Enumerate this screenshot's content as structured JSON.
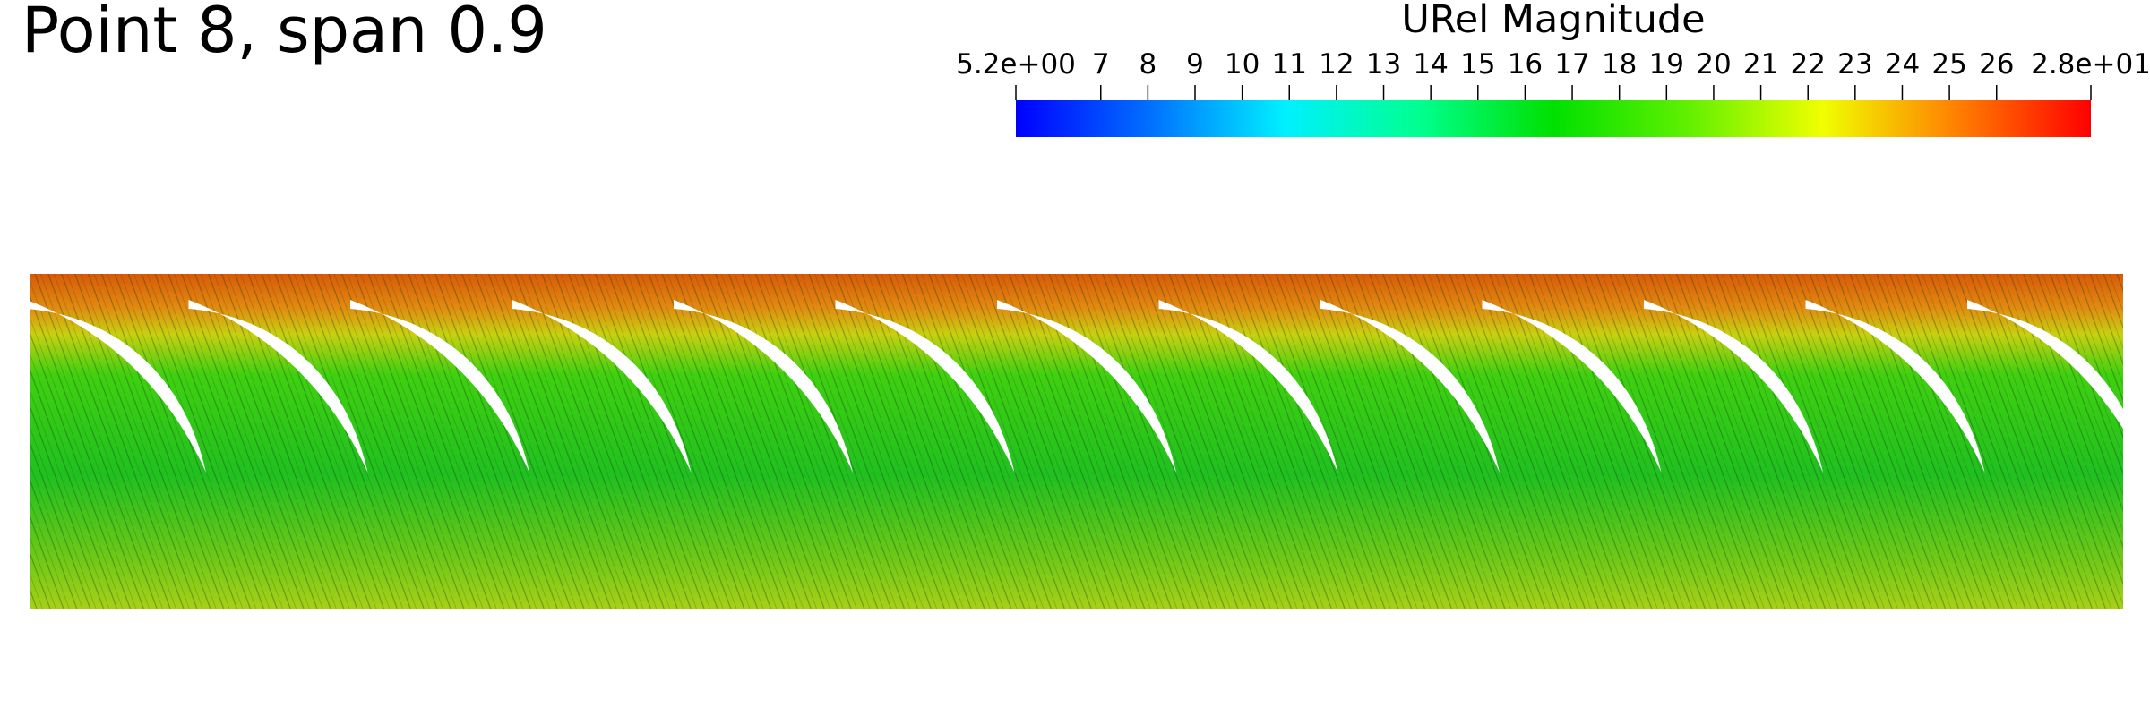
{
  "chart_data": {
    "type": "colorbar",
    "title": "Point 8, span 0.9",
    "colorbar_title": "URel Magnitude",
    "xlim": [
      5.2,
      28
    ],
    "xticks": [
      {
        "value": 5.2,
        "label": "5.2e+00"
      },
      7,
      8,
      9,
      10,
      11,
      12,
      13,
      14,
      15,
      16,
      17,
      18,
      19,
      20,
      21,
      22,
      23,
      24,
      25,
      26,
      {
        "value": 28,
        "label": "2.8e+01"
      }
    ],
    "colormap": [
      "#0000ff",
      "#0070ff",
      "#00f0ff",
      "#00ff90",
      "#00e000",
      "#60f000",
      "#f0ff00",
      "#ff8000",
      "#ff0000"
    ]
  }
}
